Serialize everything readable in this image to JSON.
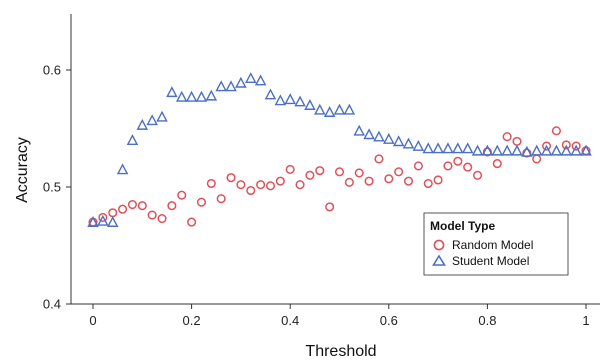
{
  "chart_data": {
    "type": "scatter",
    "xlabel": "Threshold",
    "ylabel": "Accuracy",
    "xlim": [
      -0.02,
      1.02
    ],
    "ylim": [
      0.4,
      0.65
    ],
    "xticks": [
      0,
      0.2,
      0.4,
      0.6,
      0.8,
      1
    ],
    "xtick_labels": [
      "0",
      "0.2",
      "0.4",
      "0.6",
      "0.8",
      "1"
    ],
    "yticks": [
      0.4,
      0.5,
      0.6
    ],
    "ytick_labels": [
      "0.4",
      "0.5",
      "0.6"
    ],
    "grid": false,
    "legend": {
      "title": "Model Type",
      "placement": "bottom-right"
    },
    "series": [
      {
        "name": "Random Model",
        "marker": "circle",
        "color": "#e0505a",
        "points": [
          [
            0.0,
            0.47
          ],
          [
            0.02,
            0.474
          ],
          [
            0.04,
            0.478
          ],
          [
            0.06,
            0.481
          ],
          [
            0.08,
            0.485
          ],
          [
            0.1,
            0.484
          ],
          [
            0.12,
            0.476
          ],
          [
            0.14,
            0.473
          ],
          [
            0.16,
            0.484
          ],
          [
            0.18,
            0.493
          ],
          [
            0.2,
            0.47
          ],
          [
            0.22,
            0.487
          ],
          [
            0.24,
            0.503
          ],
          [
            0.26,
            0.49
          ],
          [
            0.28,
            0.508
          ],
          [
            0.3,
            0.502
          ],
          [
            0.32,
            0.497
          ],
          [
            0.34,
            0.502
          ],
          [
            0.36,
            0.501
          ],
          [
            0.38,
            0.505
          ],
          [
            0.4,
            0.515
          ],
          [
            0.42,
            0.502
          ],
          [
            0.44,
            0.51
          ],
          [
            0.46,
            0.514
          ],
          [
            0.48,
            0.483
          ],
          [
            0.5,
            0.513
          ],
          [
            0.52,
            0.504
          ],
          [
            0.54,
            0.512
          ],
          [
            0.56,
            0.505
          ],
          [
            0.58,
            0.524
          ],
          [
            0.6,
            0.507
          ],
          [
            0.62,
            0.513
          ],
          [
            0.64,
            0.505
          ],
          [
            0.66,
            0.518
          ],
          [
            0.68,
            0.503
          ],
          [
            0.7,
            0.506
          ],
          [
            0.72,
            0.518
          ],
          [
            0.74,
            0.522
          ],
          [
            0.76,
            0.517
          ],
          [
            0.78,
            0.51
          ],
          [
            0.8,
            0.53
          ],
          [
            0.82,
            0.52
          ],
          [
            0.84,
            0.543
          ],
          [
            0.86,
            0.539
          ],
          [
            0.88,
            0.529
          ],
          [
            0.9,
            0.524
          ],
          [
            0.92,
            0.535
          ],
          [
            0.94,
            0.548
          ],
          [
            0.96,
            0.536
          ],
          [
            0.98,
            0.535
          ],
          [
            1.0,
            0.531
          ]
        ]
      },
      {
        "name": "Student Model",
        "marker": "triangle",
        "color": "#4a6fc4",
        "points": [
          [
            0.0,
            0.47
          ],
          [
            0.02,
            0.471
          ],
          [
            0.04,
            0.47
          ],
          [
            0.06,
            0.515
          ],
          [
            0.08,
            0.54
          ],
          [
            0.1,
            0.553
          ],
          [
            0.12,
            0.557
          ],
          [
            0.14,
            0.56
          ],
          [
            0.16,
            0.581
          ],
          [
            0.18,
            0.577
          ],
          [
            0.2,
            0.577
          ],
          [
            0.22,
            0.577
          ],
          [
            0.24,
            0.578
          ],
          [
            0.26,
            0.586
          ],
          [
            0.28,
            0.586
          ],
          [
            0.3,
            0.589
          ],
          [
            0.32,
            0.593
          ],
          [
            0.34,
            0.591
          ],
          [
            0.36,
            0.579
          ],
          [
            0.38,
            0.574
          ],
          [
            0.4,
            0.575
          ],
          [
            0.42,
            0.573
          ],
          [
            0.44,
            0.57
          ],
          [
            0.46,
            0.566
          ],
          [
            0.48,
            0.564
          ],
          [
            0.5,
            0.566
          ],
          [
            0.52,
            0.566
          ],
          [
            0.54,
            0.548
          ],
          [
            0.56,
            0.545
          ],
          [
            0.58,
            0.543
          ],
          [
            0.6,
            0.541
          ],
          [
            0.62,
            0.539
          ],
          [
            0.64,
            0.537
          ],
          [
            0.66,
            0.535
          ],
          [
            0.68,
            0.533
          ],
          [
            0.7,
            0.533
          ],
          [
            0.72,
            0.533
          ],
          [
            0.74,
            0.533
          ],
          [
            0.76,
            0.533
          ],
          [
            0.78,
            0.531
          ],
          [
            0.8,
            0.531
          ],
          [
            0.82,
            0.531
          ],
          [
            0.84,
            0.531
          ],
          [
            0.86,
            0.531
          ],
          [
            0.88,
            0.53
          ],
          [
            0.9,
            0.531
          ],
          [
            0.92,
            0.531
          ],
          [
            0.94,
            0.531
          ],
          [
            0.96,
            0.531
          ],
          [
            0.98,
            0.531
          ],
          [
            1.0,
            0.531
          ]
        ]
      }
    ]
  }
}
